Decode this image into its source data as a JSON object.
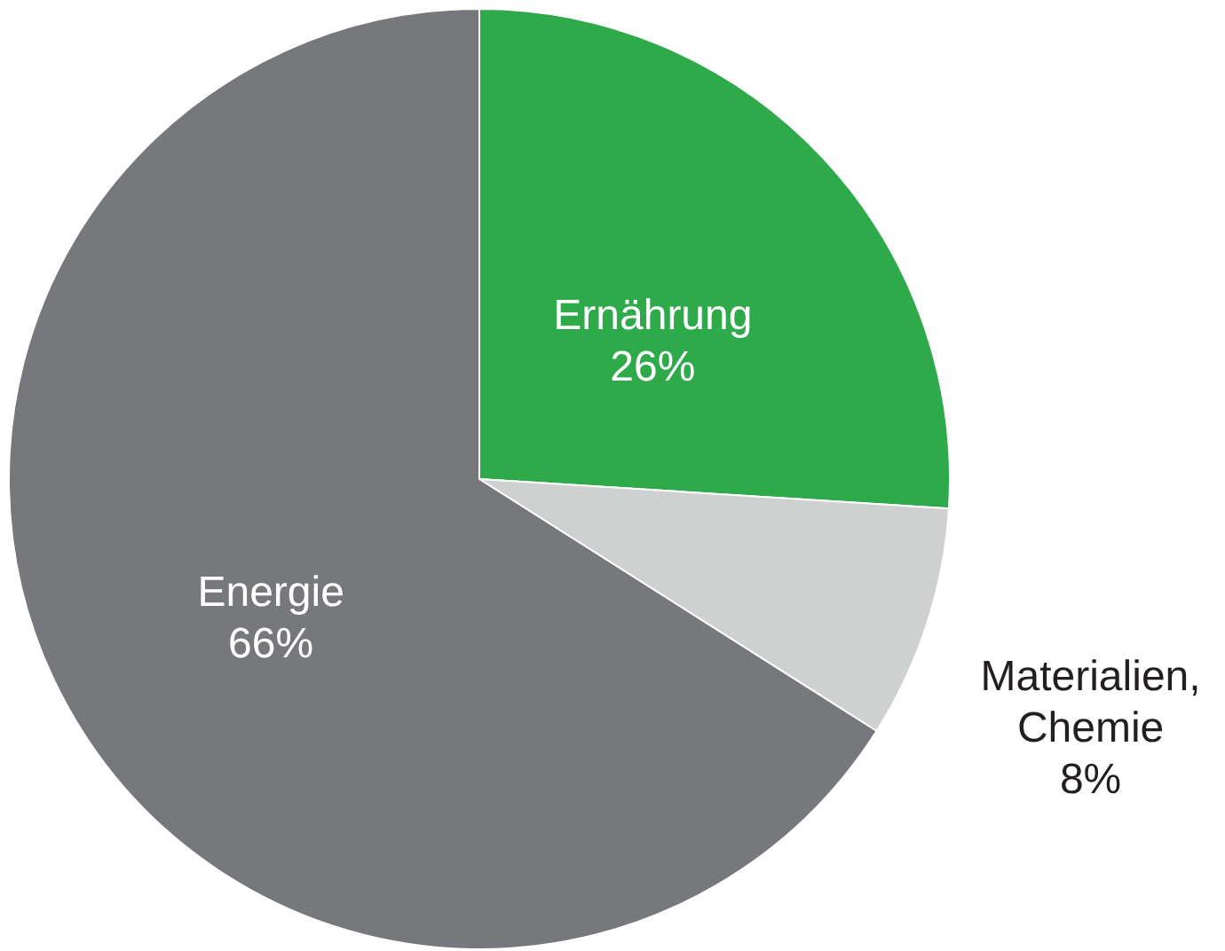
{
  "chart_data": {
    "type": "pie",
    "categories": [
      "Ernährung",
      "Materialien, Chemie",
      "Energie"
    ],
    "values": [
      26,
      8,
      66
    ],
    "colors": [
      "#2eaa4a",
      "#cfd0d0",
      "#77787b"
    ],
    "value_labels": [
      "26%",
      "8%",
      "66%"
    ]
  }
}
